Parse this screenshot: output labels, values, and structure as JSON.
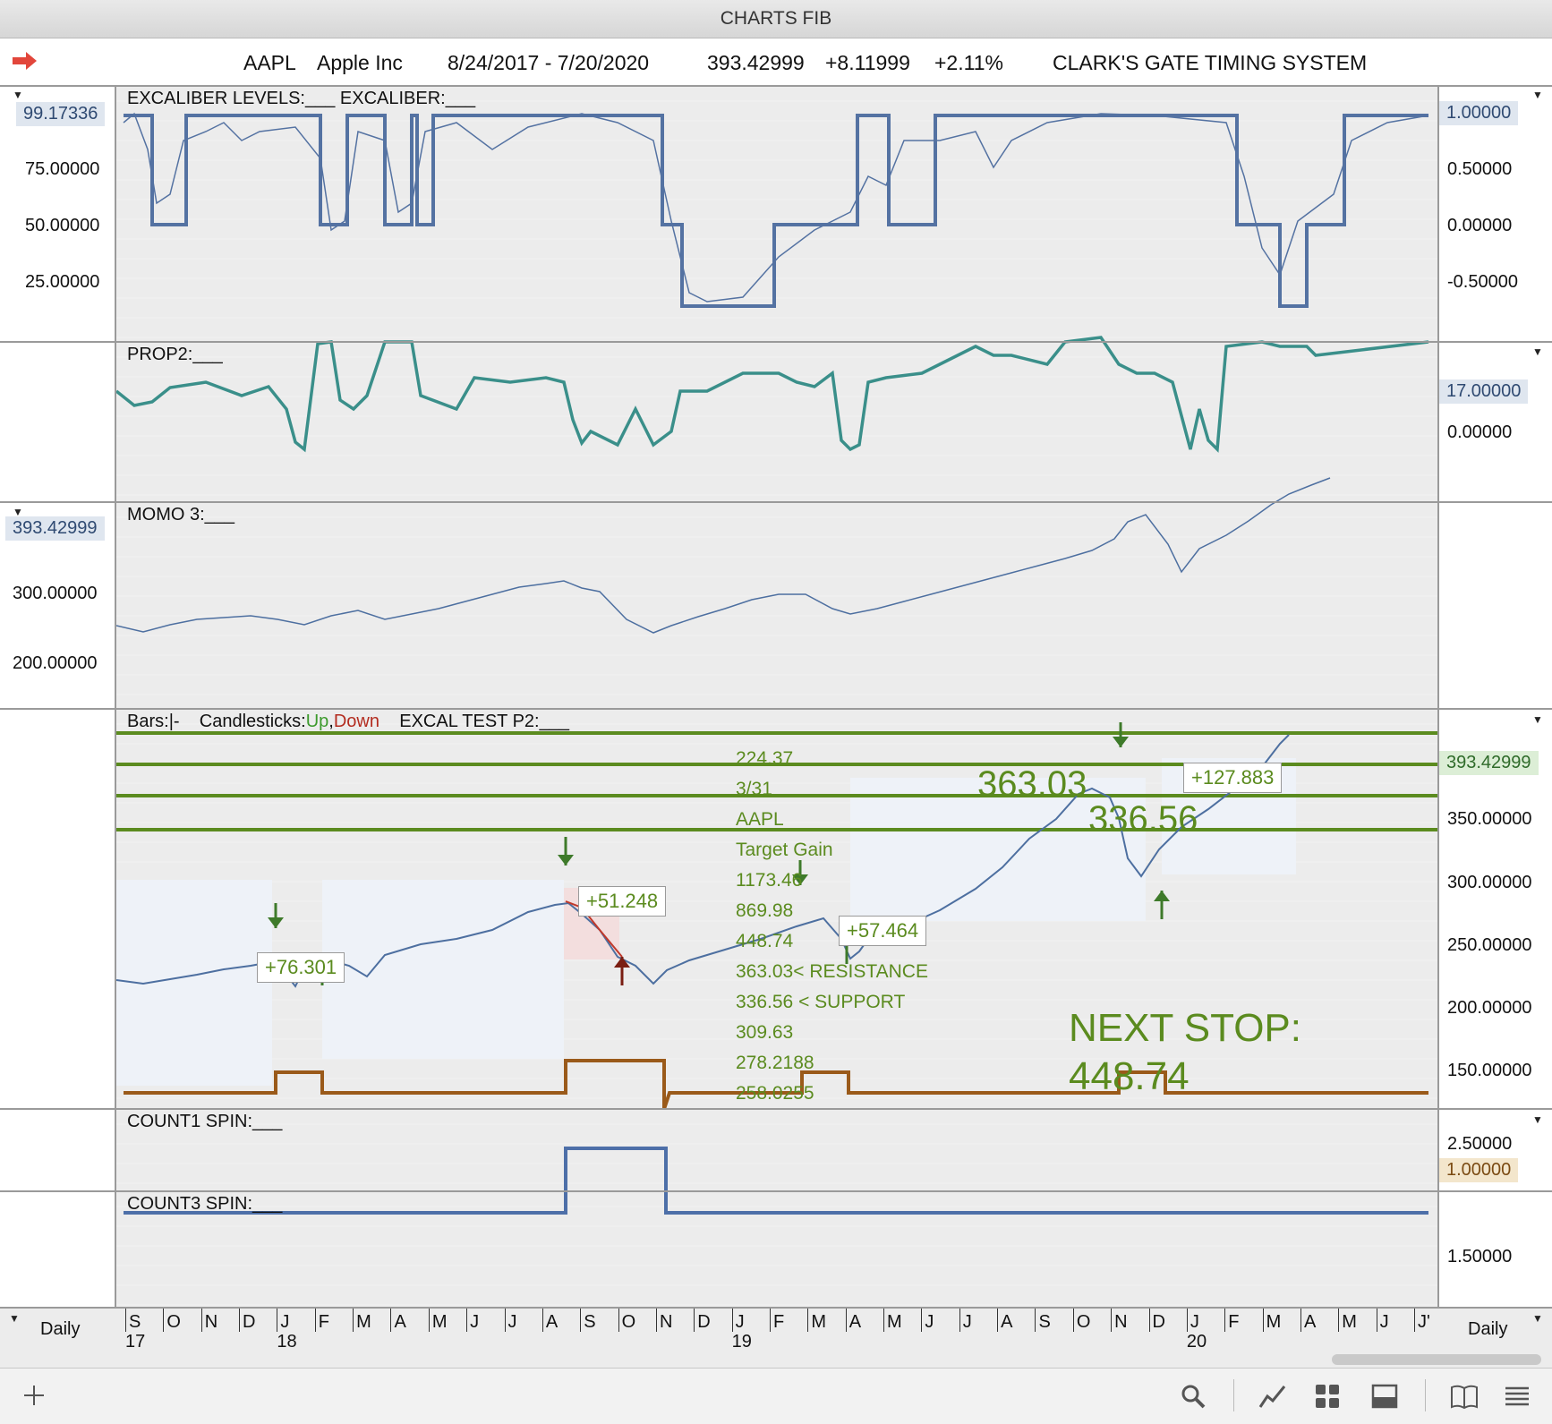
{
  "window": {
    "title": "CHARTS FIB"
  },
  "header": {
    "symbol": "AAPL",
    "name": "Apple Inc",
    "range": "8/24/2017 - 7/20/2020",
    "price": "393.42999",
    "change": "+8.11999",
    "pct": "+2.11%",
    "system": "CLARK'S GATE TIMING SYSTEM"
  },
  "panels": {
    "excaliber": {
      "title": "EXCALIBER LEVELS:___   EXCALIBER:___",
      "current_left": "99.17336",
      "left_ticks": [
        "75.00000",
        "50.00000",
        "25.00000"
      ],
      "current_right": "1.00000",
      "right_ticks": [
        "0.50000",
        "0.00000",
        "-0.50000"
      ]
    },
    "prop2": {
      "title": "PROP2:___",
      "current_right": "17.00000",
      "right_ticks": [
        "0.00000"
      ]
    },
    "momo3": {
      "title": "MOMO 3:___",
      "current_left": "393.42999",
      "left_ticks": [
        "300.00000",
        "200.00000"
      ]
    },
    "price": {
      "title_bars": "Bars:",
      "title_bar_glyph": "|-",
      "title_candles": "Candlesticks:",
      "title_up": "Up",
      "title_comma": ",",
      "title_down": "Down",
      "title_study": "EXCAL  TEST P2:___",
      "current_right": "393.42999",
      "right_ticks": [
        "350.00000",
        "300.00000",
        "250.00000",
        "200.00000",
        "150.00000"
      ],
      "annotations": {
        "list": [
          "224.37",
          "3/31",
          "AAPL",
          "Target Gain",
          "1173.46",
          "869.98",
          "448.74",
          "363.03< RESISTANCE",
          "336.56  < SUPPORT",
          "309.63",
          "278.2188",
          "258.0255"
        ],
        "level_363": "363.03",
        "level_336": "336.56",
        "next_stop_1": "NEXT STOP:",
        "next_stop_2": "448.74",
        "gain_1": "+76.301",
        "gain_2": "+51.248",
        "gain_3": "+57.464",
        "gain_4": "+127.883"
      }
    },
    "count1": {
      "title": "COUNT1 SPIN:___",
      "top_tick": "2.50000",
      "current_right": "1.00000"
    },
    "count3": {
      "title": "COUNT3 SPIN:___",
      "right_ticks": [
        "1.50000"
      ]
    }
  },
  "timeaxis": {
    "left_label": "Daily",
    "right_label": "Daily",
    "months": [
      "S",
      "O",
      "N",
      "D",
      "J",
      "F",
      "M",
      "A",
      "M",
      "J",
      "J",
      "A",
      "S",
      "O",
      "N",
      "D",
      "J",
      "F",
      "M",
      "A",
      "M",
      "J",
      "J",
      "A",
      "S",
      "O",
      "N",
      "D",
      "J",
      "F",
      "M",
      "A",
      "M",
      "J",
      "J'"
    ],
    "years": [
      "17",
      "18",
      "19",
      "20"
    ]
  },
  "colors": {
    "excal": "#5472a2",
    "prop": "#3a8f8a",
    "momo": "#4d6fa0",
    "fib": "#5b8b1f",
    "count1": "#9a5a1a",
    "count3": "#4d6fa8"
  },
  "toolbar": {
    "add_icon": "plus-icon",
    "search_icon": "magnifier-icon",
    "chart_icon": "line-chart-icon",
    "grid_icon": "grid-icon",
    "panel_icon": "panel-icon",
    "book_icon": "book-icon",
    "menu_icon": "menu-icon"
  }
}
